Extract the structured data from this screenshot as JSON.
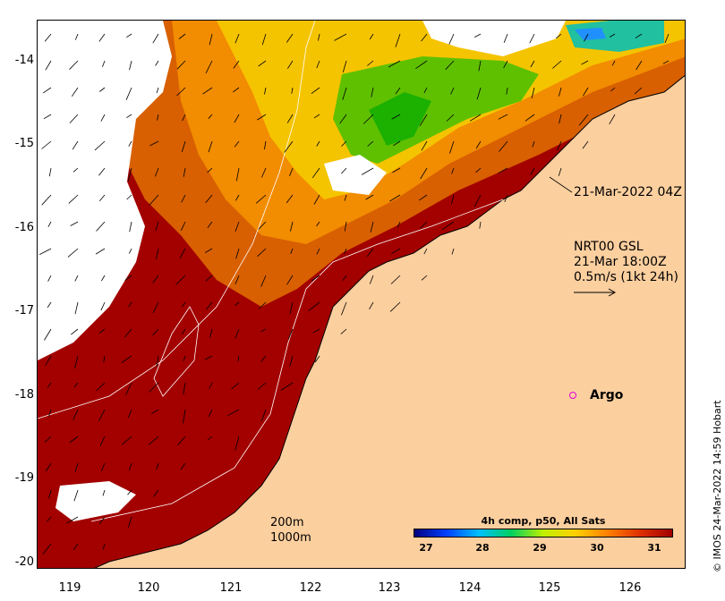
{
  "map": {
    "region": "Kimberley coast, Western Australia",
    "lon_range": [
      118.6,
      126.7
    ],
    "lat_range": [
      -20.05,
      -13.5
    ],
    "x_ticks": [
      "119",
      "120",
      "121",
      "122",
      "123",
      "124",
      "125",
      "126"
    ],
    "y_ticks": [
      "-14",
      "-15",
      "-16",
      "-17",
      "-18",
      "-19",
      "-20"
    ],
    "colors": {
      "land": "#fccf9f",
      "sst_hot": "#a30000",
      "no_data": "#ffffff",
      "argo": "#e000e0"
    }
  },
  "annotations": {
    "swath_time": "21-Mar-2022 04Z",
    "current_title": "NRT00 GSL",
    "current_time": "21-Mar 18:00Z",
    "current_scale": "0.5m/s (1kt 24h)",
    "argo_label": "Argo",
    "contour_200": "200m",
    "contour_1000": "1000m"
  },
  "colorbar": {
    "title": "4h comp, p50, All Sats",
    "ticks": [
      "27",
      "28",
      "29",
      "30",
      "31"
    ],
    "colors": [
      "#00007f",
      "#0040ff",
      "#00c0ff",
      "#00d060",
      "#c0f000",
      "#ffd000",
      "#ff8000",
      "#e03000",
      "#a00000"
    ]
  },
  "credit": "© IMOS 24-Mar-2022 14:59 Hobart"
}
